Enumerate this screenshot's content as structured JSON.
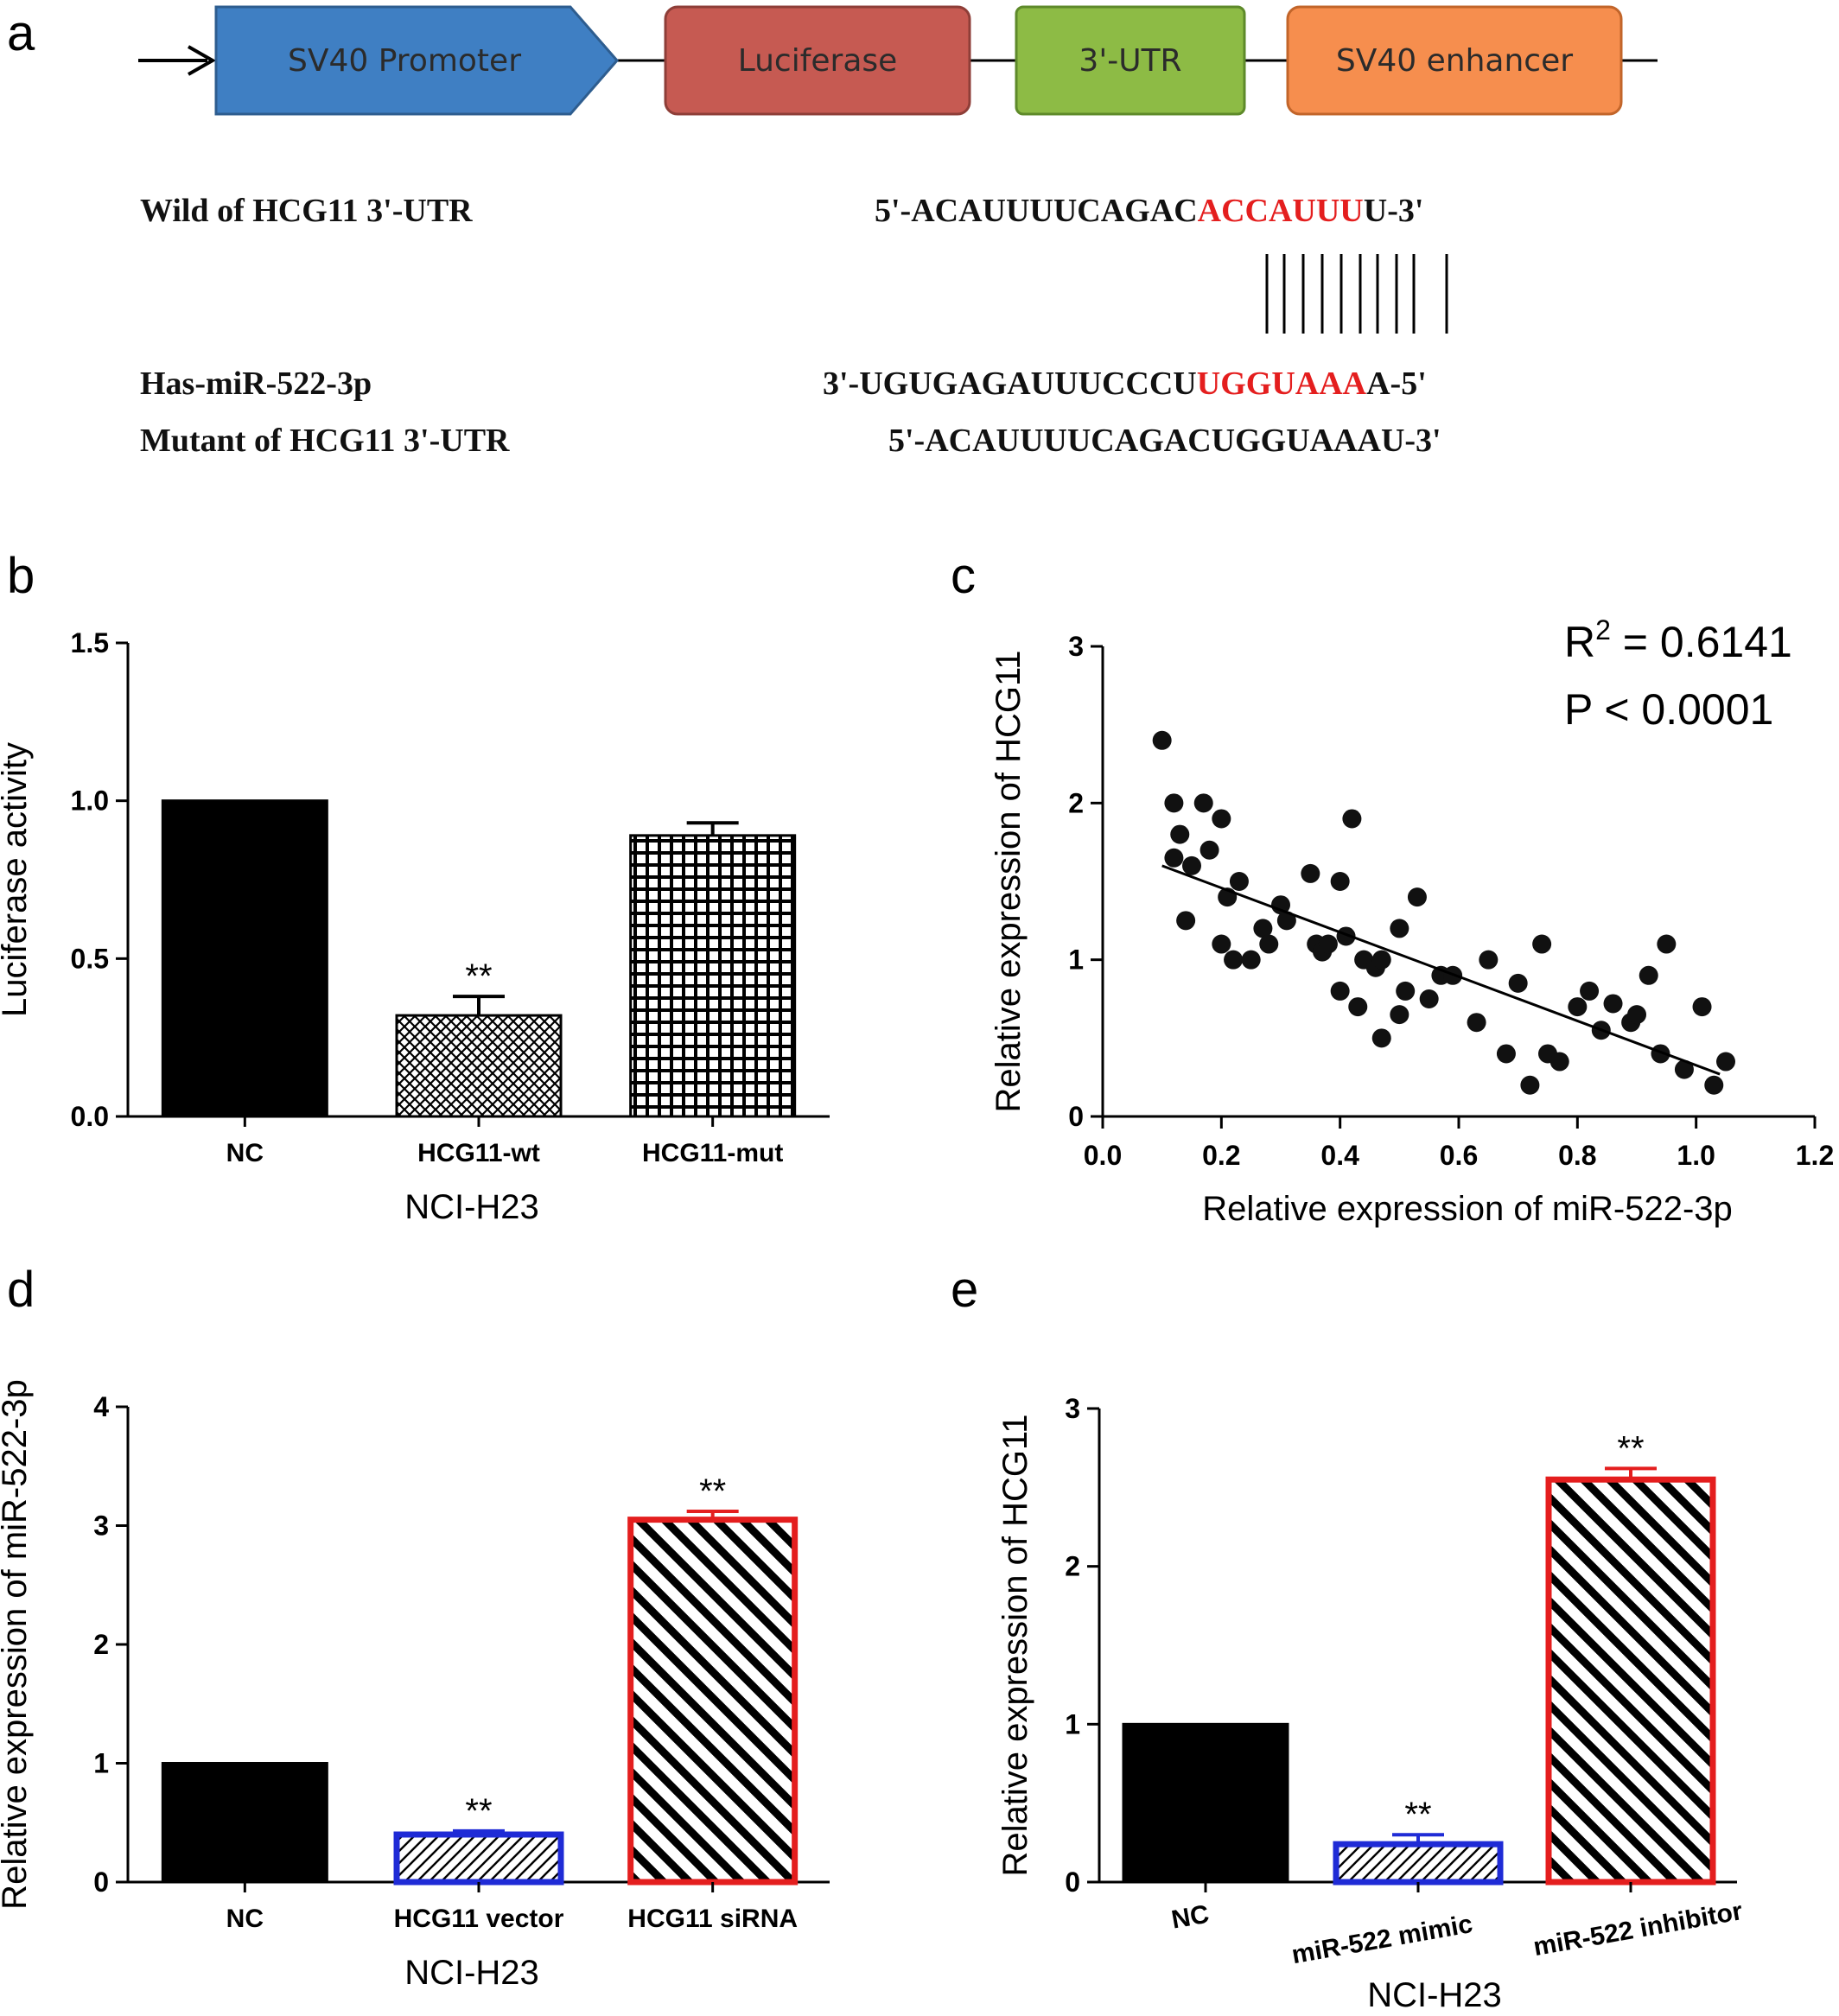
{
  "panel_a": {
    "letter": "a",
    "construct": [
      {
        "label": "SV40 Promoter",
        "fill": "#3f7fc3",
        "stroke": "#2e5d8f"
      },
      {
        "label": "Luciferase",
        "fill": "#c65a52",
        "stroke": "#8e3e38"
      },
      {
        "label": "3'-UTR",
        "fill": "#8dbb45",
        "stroke": "#5e8a2a"
      },
      {
        "label": "SV40 enhancer",
        "fill": "#f68e4e",
        "stroke": "#c2652a"
      }
    ],
    "rows": [
      {
        "label": "Wild of HCG11 3'-UTR",
        "seq_plain": "5'-ACAUUUUCAGAC",
        "seq_red": "ACCAUUU",
        "seq_end": "U-3'"
      },
      {
        "label": "Has-miR-522-3p",
        "seq_plain": "3'-UGUGAGAUUUCCCU",
        "seq_red": "UGGUAAA",
        "seq_end": "A-5'"
      },
      {
        "label": "Mutant of HCG11 3'-UTR",
        "seq_plain": "5'-ACAUUUUCAGACUGGUAAAU-3'",
        "seq_red": "",
        "seq_end": ""
      }
    ],
    "highlight_color": "#e41e1e"
  },
  "chart_data": [
    {
      "panel": "b",
      "type": "bar",
      "categories": [
        "NC",
        "HCG11-wt",
        "HCG11-mut"
      ],
      "values": [
        1.0,
        0.32,
        0.89
      ],
      "errors": [
        0,
        0.06,
        0.04
      ],
      "significance": [
        "",
        "**",
        ""
      ],
      "patterns": [
        "solid",
        "crosshatch",
        "grid"
      ],
      "bar_colors": [
        "#000000",
        "#000000",
        "#000000"
      ],
      "xlabel": "NCI-H23",
      "ylabel": "Luciferase activity",
      "ylim": [
        0,
        1.5
      ],
      "yticks": [
        "0.0",
        "0.5",
        "1.0",
        "1.5"
      ]
    },
    {
      "panel": "c",
      "type": "scatter",
      "x": [
        0.1,
        0.12,
        0.12,
        0.13,
        0.14,
        0.15,
        0.17,
        0.18,
        0.2,
        0.2,
        0.21,
        0.22,
        0.23,
        0.25,
        0.27,
        0.28,
        0.3,
        0.31,
        0.35,
        0.36,
        0.37,
        0.38,
        0.4,
        0.4,
        0.41,
        0.42,
        0.43,
        0.44,
        0.46,
        0.47,
        0.47,
        0.5,
        0.5,
        0.51,
        0.53,
        0.55,
        0.57,
        0.59,
        0.63,
        0.65,
        0.68,
        0.7,
        0.72,
        0.74,
        0.75,
        0.77,
        0.8,
        0.82,
        0.84,
        0.86,
        0.89,
        0.9,
        0.92,
        0.94,
        0.95,
        0.98,
        1.01,
        1.03,
        1.05
      ],
      "y": [
        2.4,
        1.65,
        2.0,
        1.8,
        1.25,
        1.6,
        2.0,
        1.7,
        1.1,
        1.9,
        1.4,
        1.0,
        1.5,
        1.0,
        1.2,
        1.1,
        1.35,
        1.25,
        1.55,
        1.1,
        1.05,
        1.1,
        1.5,
        0.8,
        1.15,
        1.9,
        0.7,
        1.0,
        0.95,
        1.0,
        0.5,
        0.65,
        1.2,
        0.8,
        1.4,
        0.75,
        0.9,
        0.9,
        0.6,
        1.0,
        0.4,
        0.85,
        0.2,
        1.1,
        0.4,
        0.35,
        0.7,
        0.8,
        0.55,
        0.72,
        0.6,
        0.65,
        0.9,
        0.4,
        1.1,
        0.3,
        0.7,
        0.2,
        0.35
      ],
      "fit_line": {
        "x": [
          0.1,
          1.04
        ],
        "y": [
          1.6,
          0.27
        ]
      },
      "annotation": {
        "r2_prefix": "R",
        "r2_sup": "2",
        "r2_rest": " = 0.6141",
        "p": "P < 0.0001"
      },
      "xlabel": "Relative expression of miR-522-3p",
      "ylabel": "Relative expression of HCG11",
      "xlim": [
        0,
        1.2
      ],
      "ylim": [
        0,
        3
      ],
      "xticks": [
        "0.0",
        "0.2",
        "0.4",
        "0.6",
        "0.8",
        "1.0",
        "1.2"
      ],
      "yticks": [
        "0",
        "1",
        "2",
        "3"
      ]
    },
    {
      "panel": "d",
      "type": "bar",
      "categories": [
        "NC",
        "HCG11  vector",
        "HCG11 siRNA"
      ],
      "values": [
        1.0,
        0.4,
        3.05
      ],
      "errors": [
        0,
        0.03,
        0.07
      ],
      "significance": [
        "",
        "**",
        "**"
      ],
      "patterns": [
        "solid",
        "diagonal-fine",
        "diagonal-bold"
      ],
      "bar_colors": [
        "#000000",
        "#1f2bd6",
        "#e41e1e"
      ],
      "xlabel": "NCI-H23",
      "ylabel": "Relative expression of miR-522-3p",
      "ylim": [
        0,
        4
      ],
      "yticks": [
        "0",
        "1",
        "2",
        "3",
        "4"
      ]
    },
    {
      "panel": "e",
      "type": "bar",
      "categories": [
        "NC",
        "miR-522 mimic",
        "miR-522 inhibitor"
      ],
      "values": [
        1.0,
        0.24,
        2.55
      ],
      "errors": [
        0,
        0.06,
        0.07
      ],
      "significance": [
        "",
        "**",
        "**"
      ],
      "patterns": [
        "solid",
        "diagonal-fine",
        "diagonal-bold"
      ],
      "bar_colors": [
        "#000000",
        "#1f2bd6",
        "#e41e1e"
      ],
      "xlabel": "NCI-H23",
      "ylabel": "Relative expression of HCG11",
      "ylim": [
        0,
        3
      ],
      "yticks": [
        "0",
        "1",
        "2",
        "3"
      ]
    }
  ]
}
